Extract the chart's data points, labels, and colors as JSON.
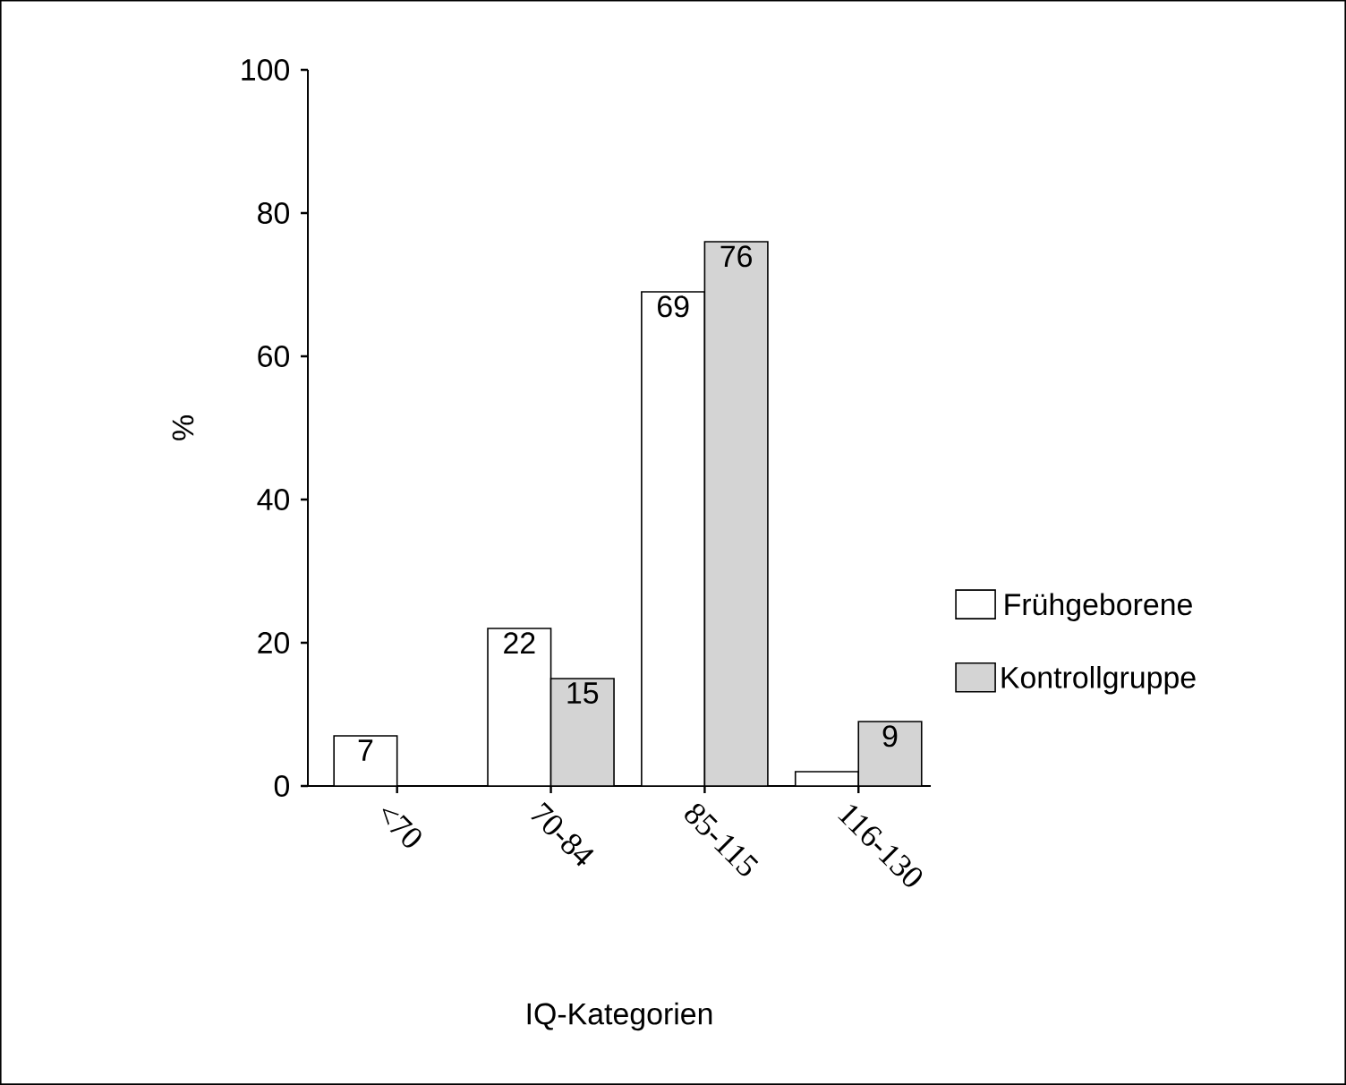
{
  "chart_data": {
    "type": "bar",
    "xlabel": "IQ-Kategorien",
    "ylabel": "%",
    "categories": [
      "<70",
      "70-84",
      "85-115",
      "116-130"
    ],
    "series": [
      {
        "name": "Frühgeborene",
        "color": "#ffffff",
        "values": [
          7,
          22,
          69,
          2
        ],
        "value_labels": [
          "7",
          "22",
          "69",
          null
        ]
      },
      {
        "name": "Kontrollgruppe",
        "color": "#d4d4d4",
        "values": [
          null,
          15,
          76,
          9
        ],
        "value_labels": [
          null,
          "15",
          "76",
          "9"
        ]
      }
    ],
    "ylim": [
      0,
      100
    ],
    "yticks": [
      0,
      20,
      40,
      60,
      80,
      100
    ],
    "grid": false,
    "legend": "right"
  }
}
